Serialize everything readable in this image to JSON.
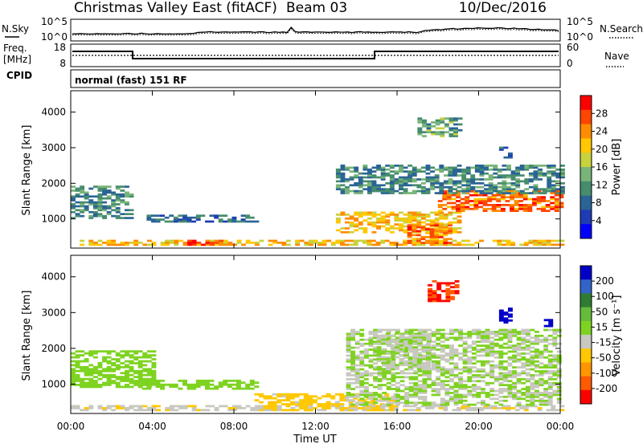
{
  "header": {
    "title": "Christmas Valley East (fitACF)",
    "beam": "Beam 03",
    "date": "10/Dec/2016"
  },
  "noise_panel": {
    "left_label": "N.Sky",
    "right_label": "N.Search",
    "left_ticks": [
      "10^5",
      "10^0"
    ],
    "right_ticks": [
      "10^5",
      "10^0"
    ]
  },
  "freq_panel": {
    "left_label_1": "Freq.",
    "left_label_2": "[MHz]",
    "right_label": "Nave",
    "left_ticks": [
      "18",
      "8"
    ],
    "right_ticks": [
      "60",
      "0"
    ]
  },
  "cpid": {
    "label": "CPID",
    "mode": "normal (fast) 151 RF"
  },
  "power_colorbar": {
    "label": "Power [dB]",
    "ticks": [
      "28",
      "24",
      "20",
      "16",
      "12",
      "8",
      "4"
    ],
    "colors": [
      "#ff0000",
      "#ff4500",
      "#ff8c00",
      "#ffc800",
      "#c8d23c",
      "#78b478",
      "#468c6e",
      "#2a6496",
      "#1e3cb4",
      "#0000ff"
    ]
  },
  "velocity_colorbar": {
    "label": "Velocity [m s⁻¹]",
    "ticks": [
      "200",
      "100",
      "50",
      "15",
      "-15",
      "-50",
      "-100",
      "-200"
    ],
    "colors": [
      "#0000c8",
      "#3264c8",
      "#2e7d32",
      "#66bb3c",
      "#7ed321",
      "#c8c8c0",
      "#ffc800",
      "#ff9600",
      "#ff5a00",
      "#ff0000"
    ]
  },
  "chart_data": [
    {
      "type": "heatmap",
      "name": "power",
      "ylabel": "Slant Range [km]",
      "ylim": [
        180,
        4600
      ],
      "yticks": [
        1000,
        2000,
        3000,
        4000
      ],
      "xticks": [
        "00:00",
        "04:00",
        "08:00",
        "12:00",
        "16:00",
        "20:00",
        "00:00"
      ],
      "xlim_hours": [
        0,
        24
      ],
      "value_range_db": [
        0,
        30
      ],
      "regions": [
        {
          "t": [
            0.0,
            3.0
          ],
          "r": [
            1000,
            1900
          ],
          "value": 10
        },
        {
          "t": [
            3.5,
            9.0
          ],
          "r": [
            900,
            1100
          ],
          "value": 8
        },
        {
          "t": [
            0.0,
            24.0
          ],
          "r": [
            250,
            400
          ],
          "value": 20
        },
        {
          "t": [
            5.5,
            7.5
          ],
          "r": [
            250,
            380
          ],
          "value": 26
        },
        {
          "t": [
            13.0,
            19.0
          ],
          "r": [
            600,
            1200
          ],
          "value": 20
        },
        {
          "t": [
            16.5,
            18.5
          ],
          "r": [
            300,
            900
          ],
          "value": 24
        },
        {
          "t": [
            18.0,
            24.0
          ],
          "r": [
            1200,
            1800
          ],
          "value": 24
        },
        {
          "t": [
            13.0,
            24.0
          ],
          "r": [
            1700,
            2500
          ],
          "value": 10
        },
        {
          "t": [
            17.0,
            19.0
          ],
          "r": [
            3300,
            3800
          ],
          "value": 12
        },
        {
          "t": [
            21.0,
            21.5
          ],
          "r": [
            2700,
            3000
          ],
          "value": 8
        }
      ]
    },
    {
      "type": "heatmap",
      "name": "velocity",
      "ylabel": "Slant Range [km]",
      "xlabel": "Time UT",
      "ylim": [
        180,
        4600
      ],
      "yticks": [
        1000,
        2000,
        3000,
        4000
      ],
      "xticks": [
        "00:00",
        "04:00",
        "08:00",
        "12:00",
        "16:00",
        "20:00",
        "00:00"
      ],
      "xlim_hours": [
        0,
        24
      ],
      "value_range": [
        -250,
        250
      ],
      "regions": [
        {
          "t": [
            0.0,
            4.0
          ],
          "r": [
            900,
            1900
          ],
          "value": 30
        },
        {
          "t": [
            3.5,
            9.0
          ],
          "r": [
            850,
            1100
          ],
          "value": 30
        },
        {
          "t": [
            0.0,
            24.0
          ],
          "r": [
            250,
            400
          ],
          "value": -40
        },
        {
          "t": [
            9.0,
            16.0
          ],
          "r": [
            250,
            700
          ],
          "value": -60
        },
        {
          "t": [
            13.5,
            24.0
          ],
          "r": [
            400,
            2500
          ],
          "value": 0
        },
        {
          "t": [
            15.0,
            17.5
          ],
          "r": [
            1400,
            2400
          ],
          "value": 0
        },
        {
          "t": [
            17.5,
            19.0
          ],
          "r": [
            3300,
            3900
          ],
          "value": -200
        },
        {
          "t": [
            21.0,
            21.6
          ],
          "r": [
            2700,
            3100
          ],
          "value": 220
        },
        {
          "t": [
            23.2,
            23.6
          ],
          "r": [
            2600,
            2800
          ],
          "value": 220
        }
      ]
    }
  ]
}
